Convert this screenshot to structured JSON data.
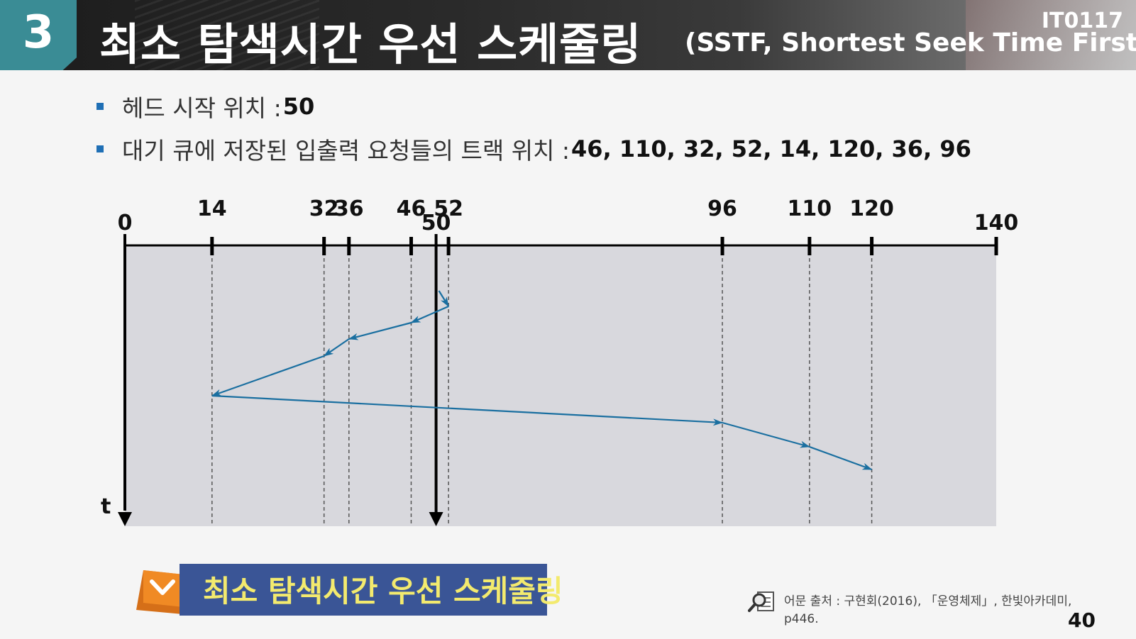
{
  "header": {
    "section_number": "3",
    "title": "최소 탐색시간 우선 스케줄링",
    "subtitle": "(SSTF, Shortest Seek Time First)",
    "course_code": "IT0117"
  },
  "bullets": [
    {
      "label": "헤드 시작 위치 :",
      "value": "50"
    },
    {
      "label": "대기 큐에 저장된 입출력 요청들의 트랙 위치 :",
      "value": "46, 110, 32, 52, 14, 120, 36, 96"
    }
  ],
  "diagram": {
    "track_min": 0,
    "track_max": 140,
    "tick_labels": [
      "0",
      "14",
      "32",
      "36",
      "46",
      "50",
      "52",
      "96",
      "110",
      "120",
      "140"
    ],
    "request_tracks": [
      14,
      32,
      36,
      46,
      52,
      96,
      110,
      120
    ],
    "head_start": 50,
    "service_order": [
      50,
      52,
      46,
      36,
      32,
      14,
      96,
      110,
      120
    ],
    "time_axis_label": "t",
    "colors": {
      "path": "#1a6fa0",
      "panel": "#d8d8dd",
      "axis": "#000000"
    }
  },
  "banner": {
    "text": "최소 탐색시간 우선 스케줄링",
    "icon": "chevron-down-icon",
    "colors": {
      "box": "#3a5596",
      "text": "#f3ea6e",
      "ribbon": "#f08a24"
    }
  },
  "source": {
    "icon": "magnifier-document-icon",
    "text": "어문 출처 : 구현회(2016), 「운영체제」, 한빛아카데미, p446."
  },
  "page_number": "40"
}
